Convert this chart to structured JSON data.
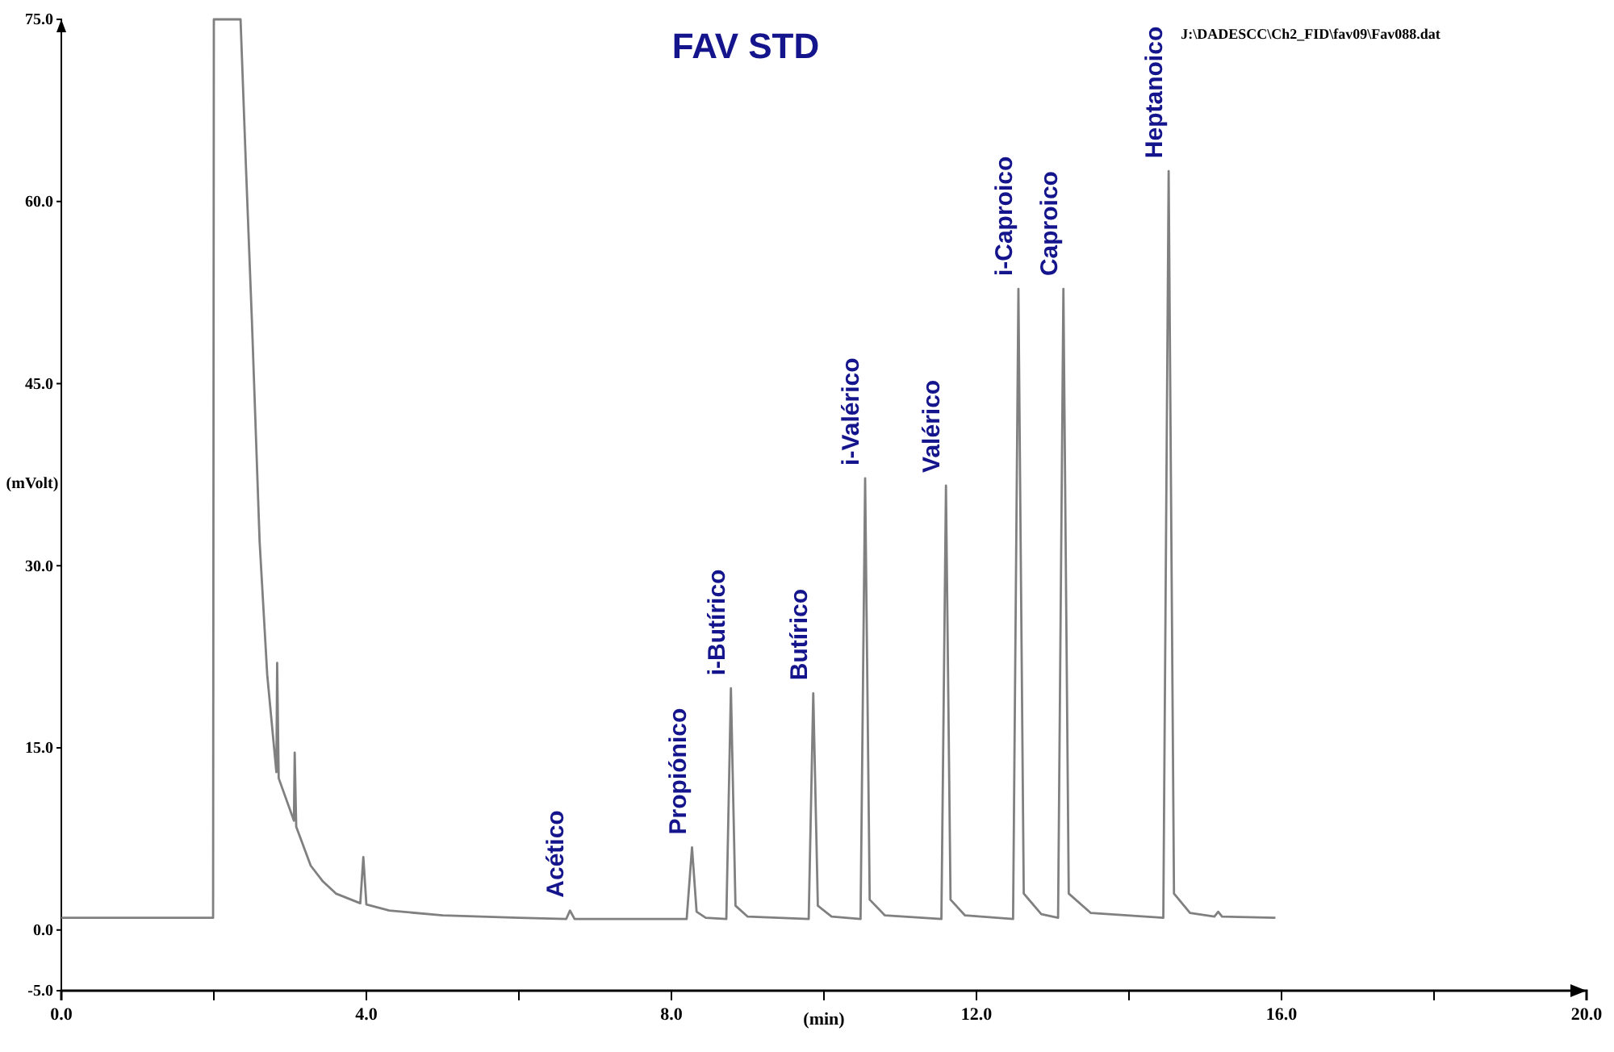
{
  "chart_data": {
    "type": "line",
    "title": "FAV STD",
    "xlabel": "(min)",
    "ylabel": "(mVolt)",
    "xlim": [
      0,
      20
    ],
    "xticks": [
      {
        "value": 0,
        "label": "0.0"
      },
      {
        "value": 2,
        "label": null
      },
      {
        "value": 4,
        "label": "4.0"
      },
      {
        "value": 6,
        "label": null
      },
      {
        "value": 8,
        "label": "8.0"
      },
      {
        "value": 10,
        "label": null
      },
      {
        "value": 12,
        "label": "12.0"
      },
      {
        "value": 14,
        "label": null
      },
      {
        "value": 16,
        "label": "16.0"
      },
      {
        "value": 18,
        "label": null
      },
      {
        "value": 20,
        "label": "20.0"
      }
    ],
    "ylim": [
      -5,
      75
    ],
    "yticks": [
      {
        "value": -5,
        "label": "-5.0"
      },
      {
        "value": 0,
        "label": "0.0"
      },
      {
        "value": 15,
        "label": "15.0"
      },
      {
        "value": 30,
        "label": "30.0"
      },
      {
        "value": 45,
        "label": "45.0"
      },
      {
        "value": 60,
        "label": "60.0"
      },
      {
        "value": 75,
        "label": "75.0"
      }
    ],
    "grid": false,
    "marker": "none",
    "line_style": "solid",
    "series": [
      {
        "color": "#808080",
        "x": [
          0,
          1.99,
          2.0,
          2.35,
          2.42,
          2.5,
          2.6,
          2.7,
          2.82,
          2.83,
          2.85,
          3.05,
          3.06,
          3.08,
          3.27,
          3.43,
          3.6,
          3.92,
          3.96,
          4.0,
          4.3,
          5.0,
          6.0,
          6.62,
          6.67,
          6.73,
          8.2,
          8.27,
          8.33,
          8.45,
          8.72,
          8.78,
          8.84,
          9.0,
          9.8,
          9.86,
          9.92,
          10.1,
          10.48,
          10.54,
          10.6,
          10.8,
          11.54,
          11.6,
          11.66,
          11.85,
          12.48,
          12.55,
          12.62,
          12.85,
          13.07,
          13.14,
          13.21,
          13.5,
          14.45,
          14.52,
          14.59,
          14.8,
          15.12,
          15.17,
          15.22,
          15.92
        ],
        "values": [
          1.0,
          1.0,
          75,
          75,
          63,
          50,
          32,
          21,
          13,
          22,
          12.5,
          9,
          14.6,
          8.5,
          5.3,
          4.0,
          3.0,
          2.2,
          6.0,
          2.1,
          1.6,
          1.2,
          1.0,
          0.9,
          1.6,
          0.9,
          0.9,
          6.8,
          1.5,
          1.0,
          0.9,
          19.9,
          2.0,
          1.1,
          0.9,
          19.5,
          2.0,
          1.1,
          0.9,
          37.2,
          2.5,
          1.2,
          0.9,
          36.6,
          2.5,
          1.2,
          0.9,
          52.8,
          3,
          1.3,
          1.0,
          52.8,
          3,
          1.4,
          1.0,
          62.5,
          3,
          1.4,
          1.1,
          1.5,
          1.1,
          1.0
        ]
      }
    ],
    "annotations": [
      "J:\\DADESCC\\Ch2_FID\\fav09\\Fav088.dat",
      {
        "text": "Acético",
        "x": 6.67,
        "y": 1.6
      },
      {
        "text": "Propiónico",
        "x": 8.27,
        "y": 6.8
      },
      {
        "text": "i-Butírico",
        "x": 8.78,
        "y": 19.9
      },
      {
        "text": "Butírico",
        "x": 9.86,
        "y": 19.5
      },
      {
        "text": "i-Valérico",
        "x": 10.54,
        "y": 37.2
      },
      {
        "text": "Valérico",
        "x": 11.6,
        "y": 36.6
      },
      {
        "text": "i-Caproico",
        "x": 12.55,
        "y": 52.8
      },
      {
        "text": "Caproico",
        "x": 13.14,
        "y": 52.8
      },
      {
        "text": "Heptanoico",
        "x": 14.52,
        "y": 62.5
      }
    ]
  }
}
